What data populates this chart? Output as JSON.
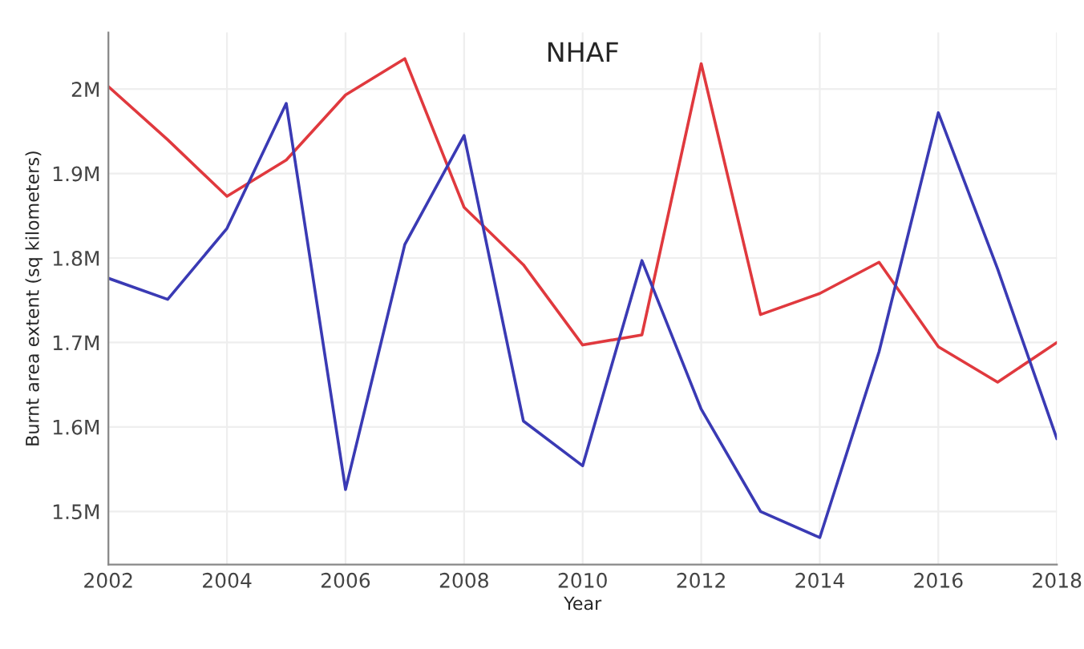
{
  "chart_data": {
    "type": "line",
    "title": "NHAF",
    "xlabel": "Year",
    "ylabel": "Burnt area extent (sq kilometers)",
    "x": [
      2002,
      2003,
      2004,
      2005,
      2006,
      2007,
      2008,
      2009,
      2010,
      2011,
      2012,
      2013,
      2014,
      2015,
      2016,
      2017,
      2018
    ],
    "series": [
      {
        "color": "#e0393e",
        "values": [
          2003000,
          1940000,
          1873000,
          1916000,
          1993000,
          2036000,
          1860000,
          1792000,
          1697000,
          1709000,
          2030000,
          1733000,
          1758000,
          1795000,
          1695000,
          1653000,
          1700000
        ]
      },
      {
        "color": "#3a3ab4",
        "values": [
          1776000,
          1751000,
          1835000,
          1983000,
          1526000,
          1816000,
          1945000,
          1607000,
          1554000,
          1797000,
          1621000,
          1500000,
          1469000,
          1689000,
          1972000,
          1787000,
          1586000
        ]
      }
    ],
    "xlim": [
      2002,
      2018
    ],
    "xticks": [
      2002,
      2004,
      2006,
      2008,
      2010,
      2012,
      2014,
      2016,
      2018
    ],
    "ylim": [
      1437000,
      2067000
    ],
    "yticks": [
      {
        "value": 1500000,
        "label": "1.5M"
      },
      {
        "value": 1600000,
        "label": "1.6M"
      },
      {
        "value": 1700000,
        "label": "1.7M"
      },
      {
        "value": 1800000,
        "label": "1.8M"
      },
      {
        "value": 1900000,
        "label": "1.9M"
      },
      {
        "value": 2000000,
        "label": "2M"
      }
    ],
    "grid": true,
    "legend": false
  }
}
